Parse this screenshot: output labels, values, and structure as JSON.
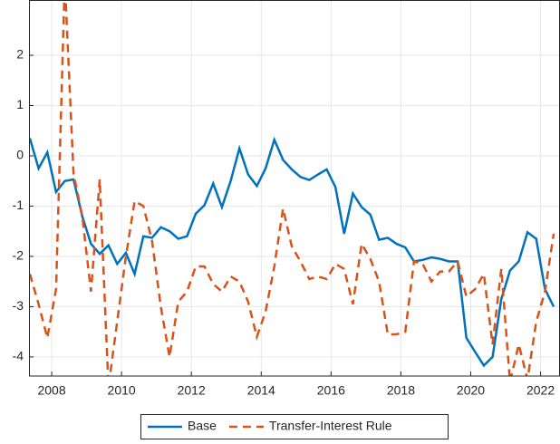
{
  "chart_data": {
    "type": "line",
    "x": [
      2007.375,
      2007.625,
      2007.875,
      2008.125,
      2008.375,
      2008.625,
      2008.875,
      2009.125,
      2009.375,
      2009.625,
      2009.875,
      2010.125,
      2010.375,
      2010.625,
      2010.875,
      2011.125,
      2011.375,
      2011.625,
      2011.875,
      2012.125,
      2012.375,
      2012.625,
      2012.875,
      2013.125,
      2013.375,
      2013.625,
      2013.875,
      2014.125,
      2014.375,
      2014.625,
      2014.875,
      2015.125,
      2015.375,
      2015.625,
      2015.875,
      2016.125,
      2016.375,
      2016.625,
      2016.875,
      2017.125,
      2017.375,
      2017.625,
      2017.875,
      2018.125,
      2018.375,
      2018.625,
      2018.875,
      2019.125,
      2019.375,
      2019.625,
      2019.875,
      2020.125,
      2020.375,
      2020.625,
      2020.875,
      2021.125,
      2021.375,
      2021.625,
      2021.875,
      2022.125,
      2022.375
    ],
    "series": [
      {
        "name": "Base",
        "color": "#0072BD",
        "dash": false,
        "values": [
          0.35,
          -0.25,
          0.07,
          -0.72,
          -0.5,
          -0.47,
          -1.2,
          -1.75,
          -1.95,
          -1.78,
          -2.15,
          -1.93,
          -2.35,
          -1.6,
          -1.63,
          -1.42,
          -1.5,
          -1.65,
          -1.6,
          -1.15,
          -0.98,
          -0.55,
          -1.02,
          -0.5,
          0.15,
          -0.37,
          -0.6,
          -0.25,
          0.32,
          -0.08,
          -0.27,
          -0.42,
          -0.48,
          -0.37,
          -0.27,
          -0.62,
          -1.55,
          -0.75,
          -1.02,
          -1.17,
          -1.67,
          -1.63,
          -1.75,
          -1.82,
          -2.1,
          -2.07,
          -2.02,
          -2.05,
          -2.1,
          -2.1,
          -3.62,
          -3.9,
          -4.17,
          -4.0,
          -2.85,
          -2.28,
          -2.1,
          -1.52,
          -1.65,
          -2.65,
          -3.0
        ]
      },
      {
        "name": "Transfer-Interest Rule",
        "color": "#D95319",
        "dash": true,
        "values": [
          -2.35,
          -2.95,
          -3.62,
          -2.65,
          3.5,
          -0.35,
          -1.2,
          -2.7,
          -0.47,
          -4.6,
          -3.3,
          -2.0,
          -0.9,
          -1.0,
          -1.7,
          -3.0,
          -4.0,
          -2.9,
          -2.7,
          -2.2,
          -2.2,
          -2.55,
          -2.7,
          -2.4,
          -2.5,
          -2.9,
          -3.6,
          -3.1,
          -2.2,
          -1.05,
          -1.8,
          -2.1,
          -2.45,
          -2.4,
          -2.45,
          -2.15,
          -2.25,
          -2.95,
          -1.75,
          -2.05,
          -2.5,
          -3.55,
          -3.55,
          -3.5,
          -2.1,
          -2.15,
          -2.5,
          -2.3,
          -2.3,
          -2.1,
          -2.8,
          -2.65,
          -2.35,
          -3.75,
          -2.25,
          -4.5,
          -3.75,
          -4.45,
          -3.3,
          -2.7,
          -1.55
        ]
      }
    ],
    "xlim": [
      2007.35,
      2022.53
    ],
    "xticks": [
      2008,
      2010,
      2012,
      2014,
      2016,
      2018,
      2020,
      2022
    ],
    "ylim": [
      -4.38,
      3.1
    ],
    "yticks": [
      -4,
      -3,
      -2,
      -1,
      0,
      1,
      2
    ],
    "grid": true,
    "legend": "bottom"
  }
}
